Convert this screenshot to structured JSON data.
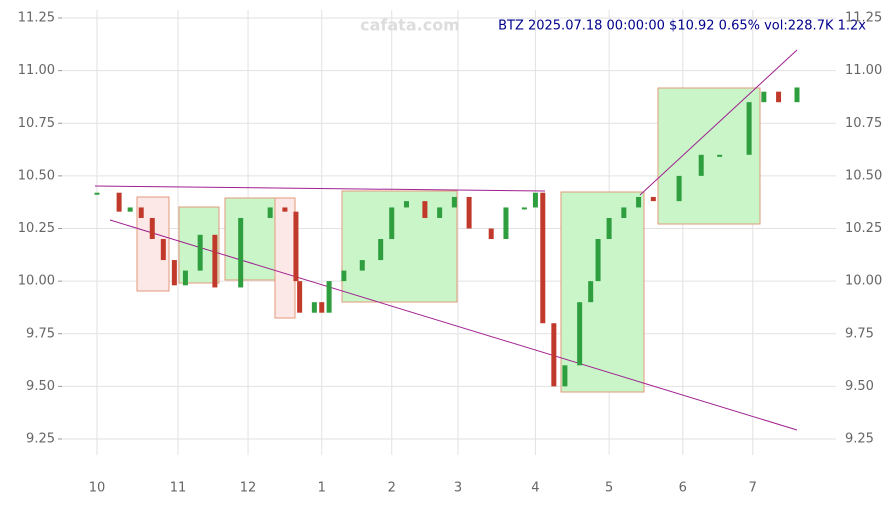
{
  "chart_data": {
    "type": "candlestick",
    "title": "BTZ 2025.07.18 00:00:00 $10.92 0.65% vol:228.7K 1.2x",
    "watermark": "cafata.com",
    "x": [
      0,
      6,
      9,
      12,
      15,
      18,
      21,
      24,
      28,
      32,
      39,
      47,
      51,
      54,
      55,
      59,
      61,
      63,
      67,
      72,
      77,
      80,
      84,
      89,
      93,
      97,
      101,
      107,
      111,
      116,
      119,
      121,
      124,
      127,
      131,
      134,
      136,
      139,
      143,
      147,
      151,
      158,
      164,
      169,
      177,
      181,
      185,
      190
    ],
    "close": [
      10.42,
      10.33,
      10.35,
      10.3,
      10.2,
      10.1,
      9.98,
      10.05,
      10.22,
      9.97,
      10.3,
      10.35,
      10.33,
      10.0,
      9.85,
      9.9,
      9.85,
      10.0,
      10.05,
      10.1,
      10.2,
      10.35,
      10.38,
      10.3,
      10.35,
      10.4,
      10.25,
      10.2,
      10.35,
      10.35,
      10.42,
      9.8,
      9.5,
      9.6,
      9.9,
      10.0,
      10.2,
      10.3,
      10.35,
      10.4,
      10.38,
      10.5,
      10.6,
      10.6,
      10.85,
      10.9,
      10.85,
      10.92
    ],
    "up_color": "#2e9e3e",
    "down_color": "#c0392b",
    "xlim": [
      0,
      190
    ],
    "xticks": [
      {
        "value": 0,
        "label": "10"
      },
      {
        "value": 22,
        "label": "11"
      },
      {
        "value": 41,
        "label": "12"
      },
      {
        "value": 61,
        "label": "1"
      },
      {
        "value": 80,
        "label": "2"
      },
      {
        "value": 98,
        "label": "3"
      },
      {
        "value": 119,
        "label": "4"
      },
      {
        "value": 139,
        "label": "5"
      },
      {
        "value": 159,
        "label": "6"
      },
      {
        "value": 178,
        "label": "7"
      }
    ],
    "ylim": [
      9.25,
      11.25
    ],
    "yticks": [
      {
        "value": 9.25,
        "label": "9.25"
      },
      {
        "value": 9.5,
        "label": "9.50"
      },
      {
        "value": 9.75,
        "label": "9.75"
      },
      {
        "value": 10.0,
        "label": "10.00"
      },
      {
        "value": 10.25,
        "label": "10.25"
      },
      {
        "value": 10.5,
        "label": "10.50"
      },
      {
        "value": 10.75,
        "label": "10.75"
      },
      {
        "value": 11.0,
        "label": "11.00"
      },
      {
        "value": 11.25,
        "label": "11.25"
      }
    ],
    "grid": true
  }
}
